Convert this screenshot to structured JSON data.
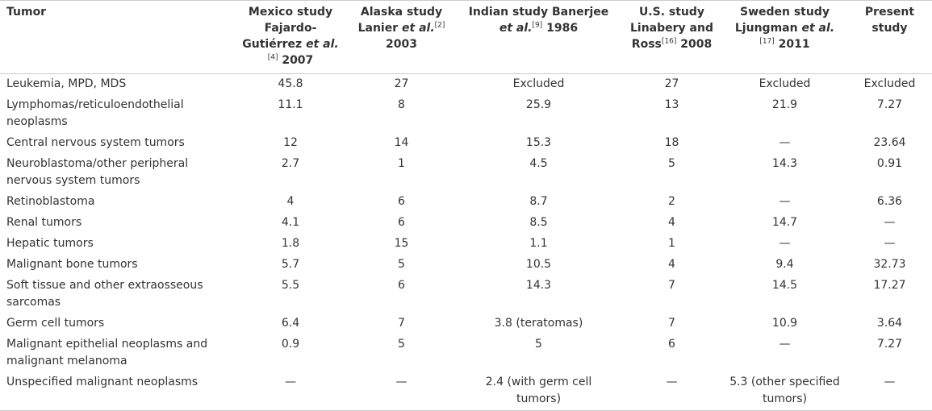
{
  "table": {
    "header": [
      [
        {
          "text": "Tumor"
        }
      ],
      [
        {
          "text": "Mexico study Fajardo-Gutiérrez "
        },
        {
          "text": "et al.",
          "style": "italic"
        },
        {
          "text": "[4]",
          "style": "sup"
        },
        {
          "text": " 2007"
        }
      ],
      [
        {
          "text": "Alaska study Lanier "
        },
        {
          "text": "et al.",
          "style": "italic"
        },
        {
          "text": "[2]",
          "style": "sup"
        },
        {
          "text": " 2003"
        }
      ],
      [
        {
          "text": "Indian study Banerjee "
        },
        {
          "text": "et al.",
          "style": "italic"
        },
        {
          "text": "[9]",
          "style": "sup"
        },
        {
          "text": " 1986"
        }
      ],
      [
        {
          "text": "U.S. study Linabery and Ross"
        },
        {
          "text": "[16]",
          "style": "sup"
        },
        {
          "text": " 2008"
        }
      ],
      [
        {
          "text": "Sweden study Ljungman "
        },
        {
          "text": "et al.",
          "style": "italic"
        },
        {
          "text": "[17]",
          "style": "sup"
        },
        {
          "text": " 2011"
        }
      ],
      [
        {
          "text": "Present study"
        }
      ]
    ],
    "rows": [
      [
        "Leukemia, MPD, MDS",
        "45.8",
        "27",
        "Excluded",
        "27",
        "Excluded",
        "Excluded"
      ],
      [
        "Lymphomas/reticuloendothelial neoplasms",
        "11.1",
        "8",
        "25.9",
        "13",
        "21.9",
        "7.27"
      ],
      [
        "Central nervous system tumors",
        "12",
        "14",
        "15.3",
        "18",
        "—",
        "23.64"
      ],
      [
        "Neuroblastoma/other peripheral nervous system tumors",
        "2.7",
        "1",
        "4.5",
        "5",
        "14.3",
        "0.91"
      ],
      [
        "Retinoblastoma",
        "4",
        "6",
        "8.7",
        "2",
        "—",
        "6.36"
      ],
      [
        "Renal tumors",
        "4.1",
        "6",
        "8.5",
        "4",
        "14.7",
        "—"
      ],
      [
        "Hepatic tumors",
        "1.8",
        "15",
        "1.1",
        "1",
        "—",
        "—"
      ],
      [
        "Malignant bone tumors",
        "5.7",
        "5",
        "10.5",
        "4",
        "9.4",
        "32.73"
      ],
      [
        "Soft tissue and other extraosseous sarcomas",
        "5.5",
        "6",
        "14.3",
        "7",
        "14.5",
        "17.27"
      ],
      [
        "Germ cell tumors",
        "6.4",
        "7",
        "3.8 (teratomas)",
        "7",
        "10.9",
        "3.64"
      ],
      [
        "Malignant epithelial neoplasms and malignant melanoma",
        "0.9",
        "5",
        "5",
        "6",
        "—",
        "7.27"
      ],
      [
        "Unspecified malignant neoplasms",
        "—",
        "—",
        "2.4 (with germ cell tumors)",
        "—",
        "5.3 (other specified tumors)",
        "—"
      ]
    ]
  }
}
